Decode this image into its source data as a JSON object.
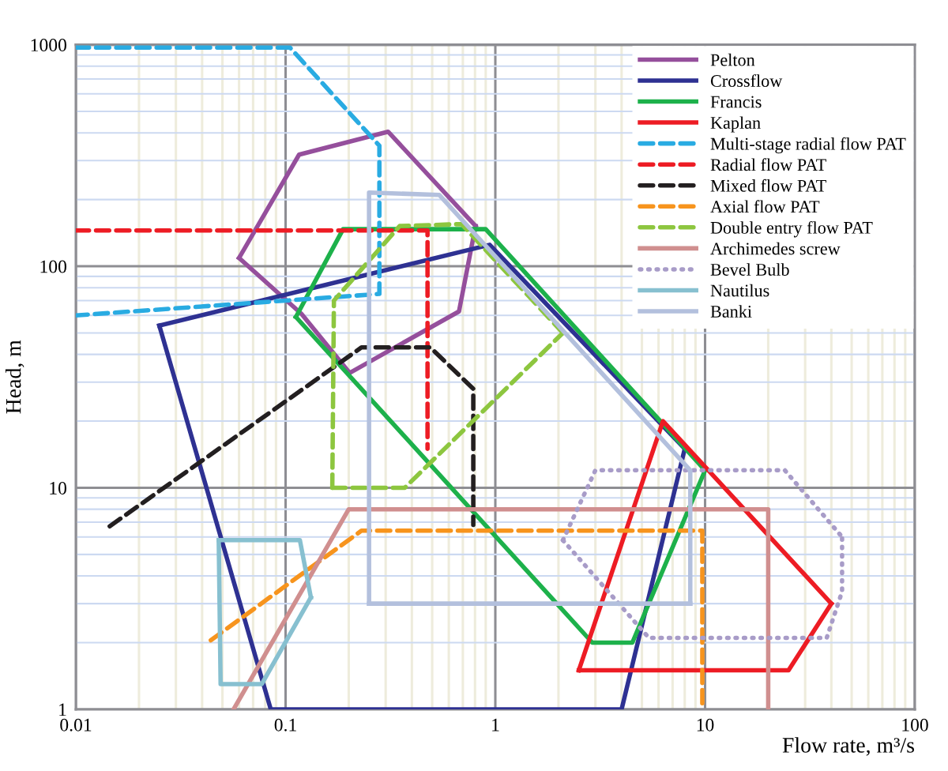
{
  "chart_data": {
    "type": "line",
    "xlabel": "Flow rate, m³/s",
    "ylabel": "Head, m",
    "log": "xy",
    "xlim": [
      0.01,
      100
    ],
    "ylim": [
      1,
      1000
    ],
    "xticks": [
      0.01,
      {
        "value": 0.02,
        "label": null
      },
      {
        "value": 0.03,
        "label": null
      },
      {
        "value": 0.04,
        "label": null
      },
      {
        "value": 0.05,
        "label": null
      },
      {
        "value": 0.06,
        "label": null
      },
      {
        "value": 0.07,
        "label": null
      },
      {
        "value": 0.08,
        "label": null
      },
      {
        "value": 0.09,
        "label": null
      },
      0.1,
      {
        "value": 0.2,
        "label": null
      },
      {
        "value": 0.3,
        "label": null
      },
      {
        "value": 0.4,
        "label": null
      },
      {
        "value": 0.5,
        "label": null
      },
      {
        "value": 0.6,
        "label": null
      },
      {
        "value": 0.7,
        "label": null
      },
      {
        "value": 0.8,
        "label": null
      },
      {
        "value": 0.9,
        "label": null
      },
      1,
      {
        "value": 2,
        "label": null
      },
      {
        "value": 3,
        "label": null
      },
      {
        "value": 4,
        "label": null
      },
      {
        "value": 5,
        "label": null
      },
      {
        "value": 6,
        "label": null
      },
      {
        "value": 7,
        "label": null
      },
      {
        "value": 8,
        "label": null
      },
      {
        "value": 9,
        "label": null
      },
      10,
      {
        "value": 20,
        "label": null
      },
      {
        "value": 30,
        "label": null
      },
      {
        "value": 40,
        "label": null
      },
      {
        "value": 50,
        "label": null
      },
      {
        "value": 60,
        "label": null
      },
      {
        "value": 70,
        "label": null
      },
      {
        "value": 80,
        "label": null
      },
      {
        "value": 90,
        "label": null
      },
      100
    ],
    "yticks": [
      1,
      {
        "value": 2,
        "label": null
      },
      {
        "value": 3,
        "label": null
      },
      {
        "value": 4,
        "label": null
      },
      {
        "value": 5,
        "label": null
      },
      {
        "value": 6,
        "label": null
      },
      {
        "value": 7,
        "label": null
      },
      {
        "value": 8,
        "label": null
      },
      {
        "value": 9,
        "label": null
      },
      10,
      {
        "value": 20,
        "label": null
      },
      {
        "value": 30,
        "label": null
      },
      {
        "value": 40,
        "label": null
      },
      {
        "value": 50,
        "label": null
      },
      {
        "value": 60,
        "label": null
      },
      {
        "value": 70,
        "label": null
      },
      {
        "value": 80,
        "label": null
      },
      {
        "value": 90,
        "label": null
      },
      100,
      {
        "value": 200,
        "label": null
      },
      {
        "value": 300,
        "label": null
      },
      {
        "value": 400,
        "label": null
      },
      {
        "value": 500,
        "label": null
      },
      {
        "value": 600,
        "label": null
      },
      {
        "value": 700,
        "label": null
      },
      {
        "value": 800,
        "label": null
      },
      {
        "value": 900,
        "label": null
      },
      1000
    ],
    "grid": true,
    "legend": "top right",
    "marker": "none",
    "series": [
      {
        "name": "Pelton",
        "color": "#954f9c",
        "line_style": "solid",
        "x": [
          0.06,
          0.116,
          0.308,
          0.805
        ],
        "values": [
          109,
          319,
          405,
          152
        ]
      },
      {
        "color": "#954f9c",
        "line_style": "solid",
        "x": [
          0.06,
          0.119,
          0.202,
          0.671,
          0.805
        ],
        "values": [
          109,
          61,
          33,
          62.5,
          152
        ]
      },
      {
        "name": "Crossflow",
        "color": "#2e3192",
        "line_style": "solid",
        "x": [
          0.025,
          0.94,
          8
        ],
        "values": [
          54,
          125,
          15
        ]
      },
      {
        "color": "#2e3192",
        "line_style": "solid",
        "x": [
          0.025,
          0.085,
          4,
          8
        ],
        "values": [
          54,
          1,
          1,
          15
        ]
      },
      {
        "name": "Francis",
        "color": "#1db14b",
        "line_style": "solid",
        "x": [
          0.112,
          0.188,
          0.9,
          10
        ],
        "values": [
          59,
          147,
          147,
          12
        ]
      },
      {
        "color": "#1db14b",
        "line_style": "solid",
        "x": [
          0.112,
          2.9,
          4.5,
          10
        ],
        "values": [
          59,
          2,
          2,
          12
        ]
      },
      {
        "name": "Kaplan",
        "color": "#ed1c24",
        "line_style": "solid",
        "x": [
          2.5,
          6.3,
          40
        ],
        "values": [
          1.5,
          20,
          3
        ]
      },
      {
        "color": "#ed1c24",
        "line_style": "solid",
        "x": [
          2.5,
          25,
          40
        ],
        "values": [
          1.5,
          1.5,
          3
        ]
      },
      {
        "name": "Multi-stage radial flow PAT",
        "color": "#29abe2",
        "line_style": "dashed",
        "x": [
          0.01,
          0.105,
          0.28,
          0.28,
          0.01
        ],
        "values": [
          970,
          970,
          350,
          75,
          60
        ]
      },
      {
        "name": "Radial flow PAT",
        "color": "#ed1c24",
        "line_style": "dashed",
        "x": [
          0.01,
          0.475,
          0.475
        ],
        "values": [
          145,
          145,
          15
        ]
      },
      {
        "name": "Mixed flow PAT",
        "color": "#231f20",
        "line_style": "dashed",
        "x": [
          0.0145,
          0.23,
          0.49,
          0.785,
          0.785
        ],
        "values": [
          6.7,
          43,
          43,
          28,
          6.8
        ]
      },
      {
        "name": "Axial flow PAT",
        "color": "#f7941d",
        "line_style": "dashed",
        "x": [
          0.044,
          0.23,
          9.7,
          9.7
        ],
        "values": [
          2.05,
          6.4,
          6.4,
          1
        ]
      },
      {
        "name": "Double entry flow PAT",
        "color": "#8dc63f",
        "line_style": "dashed",
        "x": [
          0.167,
          0.17,
          0.35,
          0.69,
          2.1
        ],
        "values": [
          10,
          70,
          152,
          155,
          50
        ]
      },
      {
        "color": "#8dc63f",
        "line_style": "dashed",
        "x": [
          0.167,
          0.37,
          2.1
        ],
        "values": [
          10,
          10,
          50
        ]
      },
      {
        "name": "Archimedes screw",
        "color": "#d08f8f",
        "line_style": "solid",
        "x": [
          0.0565,
          0.2,
          20,
          20
        ],
        "values": [
          1,
          8,
          8,
          1
        ]
      },
      {
        "name": "Bevel Bulb",
        "color": "#a89cc8",
        "line_style": "dotted",
        "x": [
          2.1,
          3,
          24,
          45
        ],
        "values": [
          5.8,
          12,
          12,
          6
        ]
      },
      {
        "color": "#a89cc8",
        "line_style": "dotted",
        "x": [
          2.1,
          5.4,
          38,
          45,
          45
        ],
        "values": [
          5.8,
          2.1,
          2.1,
          3.4,
          6
        ]
      },
      {
        "name": "Nautilus",
        "color": "#87c0d0",
        "line_style": "solid",
        "x": [
          0.048,
          0.117,
          0.132
        ],
        "values": [
          5.8,
          5.8,
          3.2
        ]
      },
      {
        "color": "#87c0d0",
        "line_style": "solid",
        "x": [
          0.048,
          0.049,
          0.077,
          0.132
        ],
        "values": [
          5.8,
          1.3,
          1.3,
          3.2
        ]
      },
      {
        "name": "Banki",
        "color": "#b3c0dd",
        "line_style": "solid",
        "x": [
          0.25,
          0.25,
          0.54,
          8.5,
          8.5
        ],
        "values": [
          3,
          215,
          210,
          12,
          3
        ]
      },
      {
        "color": "#b3c0dd",
        "line_style": "solid",
        "x": [
          0.25,
          8.5
        ],
        "values": [
          3,
          3
        ]
      }
    ]
  }
}
